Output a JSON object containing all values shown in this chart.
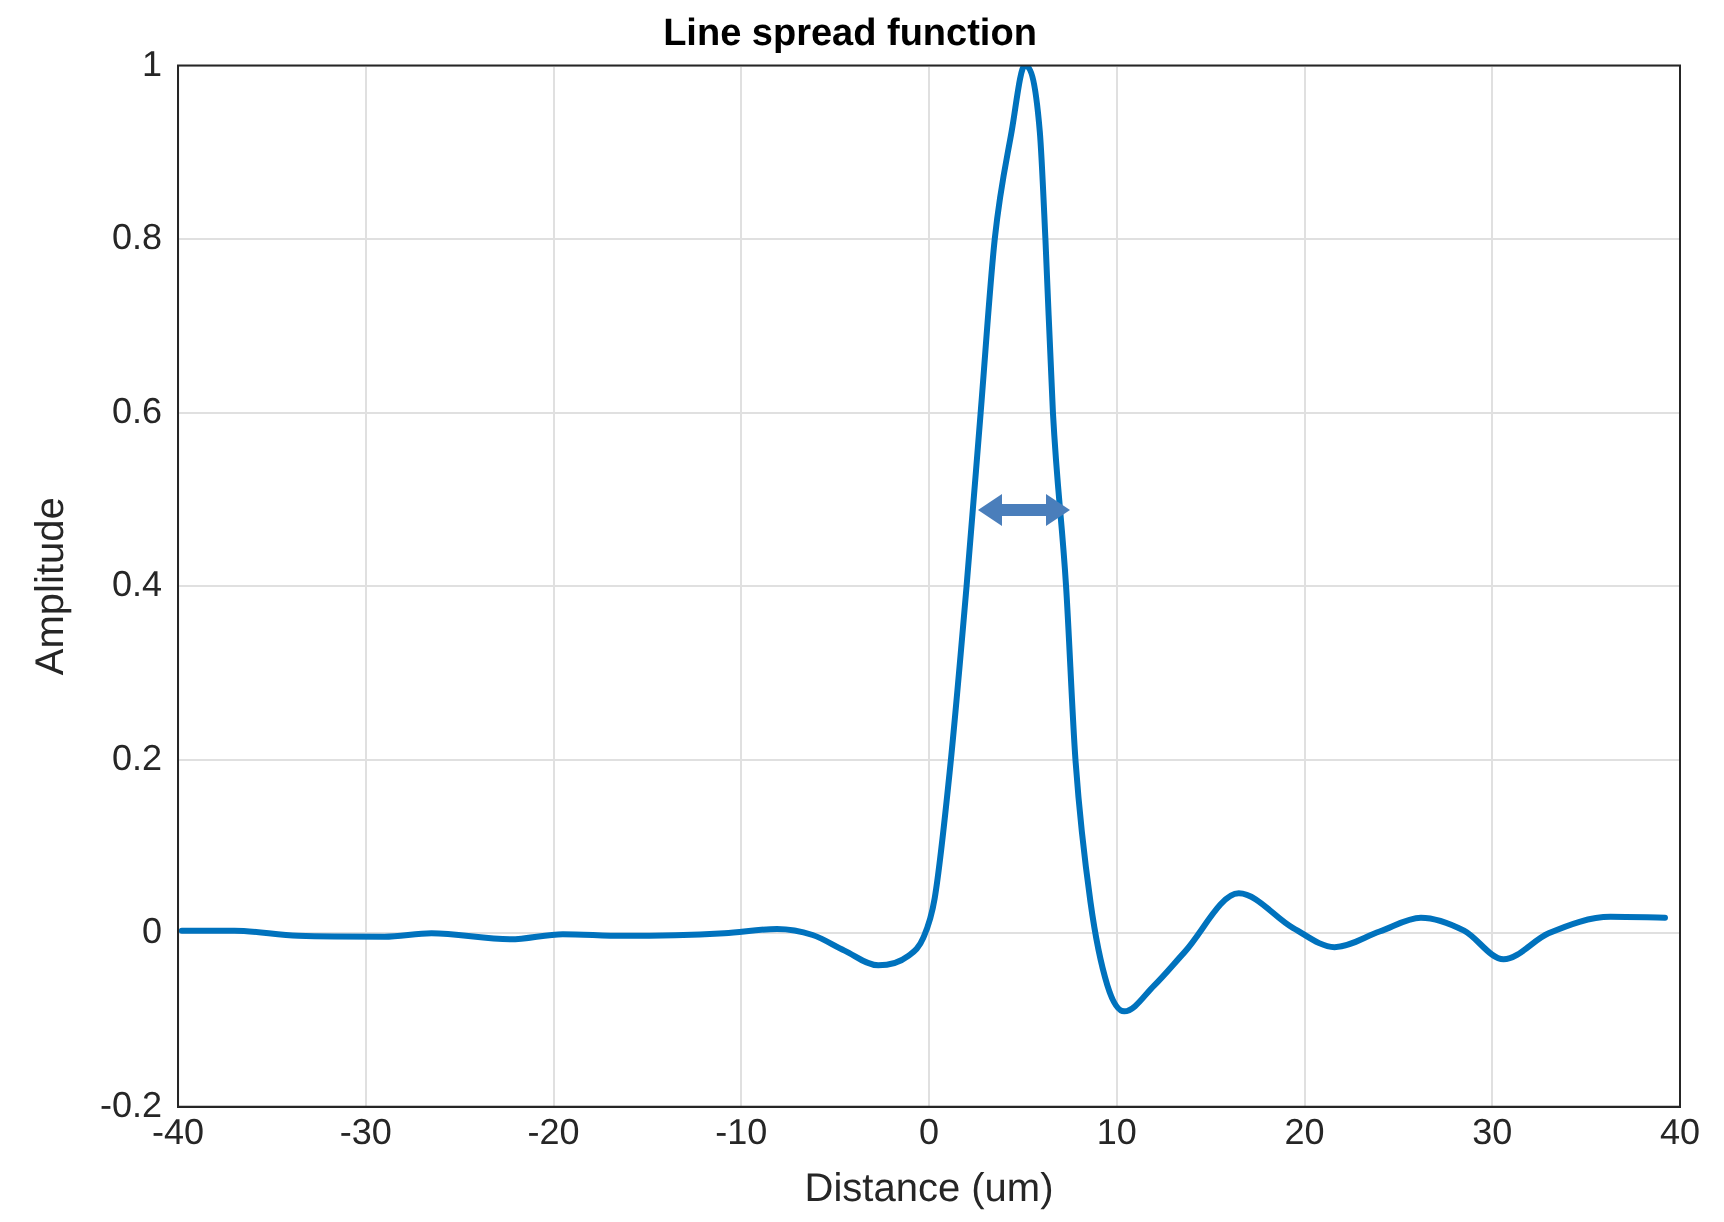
{
  "chart_data": {
    "type": "line",
    "title": "Line spread function",
    "xlabel": "Distance (um)",
    "ylabel": "Amplitude",
    "xlim": [
      -40,
      40
    ],
    "xticks": [
      -40,
      -30,
      -20,
      -10,
      0,
      10,
      20,
      30,
      40
    ],
    "ylim": [
      -0.2,
      1
    ],
    "yticks": [
      -0.2,
      0,
      0.2,
      0.4,
      0.6,
      0.8,
      1
    ],
    "grid": true,
    "marker": "none",
    "line_style": "solid",
    "series": [
      {
        "color": "#0072bd",
        "x": [
          -39.8,
          -37,
          -33.6,
          -29,
          -26.5,
          -22.3,
          -19.5,
          -16.3,
          -10.9,
          -8.1,
          -6.2,
          -4.5,
          -2.7,
          -1.1,
          -0.3,
          0.3,
          1.1,
          2.0,
          2.75,
          3.5,
          4.4,
          5.1,
          5.9,
          6.2,
          6.6,
          7.3,
          7.8,
          8.6,
          9.5,
          10.4,
          12,
          13.6,
          16.5,
          19.4,
          21.6,
          24,
          26.2,
          28.5,
          30.6,
          33,
          36.3,
          39.2
        ],
        "values": [
          0.003,
          0.003,
          -0.003,
          -0.004,
          0,
          -0.007,
          -0.001,
          -0.003,
          0,
          0.005,
          -0.002,
          -0.02,
          -0.037,
          -0.026,
          -0.005,
          0.04,
          0.186,
          0.4,
          0.6,
          0.8,
          0.924,
          1,
          0.924,
          0.8,
          0.6,
          0.4,
          0.2,
          0.036,
          -0.06,
          -0.09,
          -0.06,
          -0.022,
          0.046,
          0.006,
          -0.016,
          0.002,
          0.018,
          0.003,
          -0.03,
          0.0,
          0.019,
          0.018
        ]
      }
    ]
  }
}
